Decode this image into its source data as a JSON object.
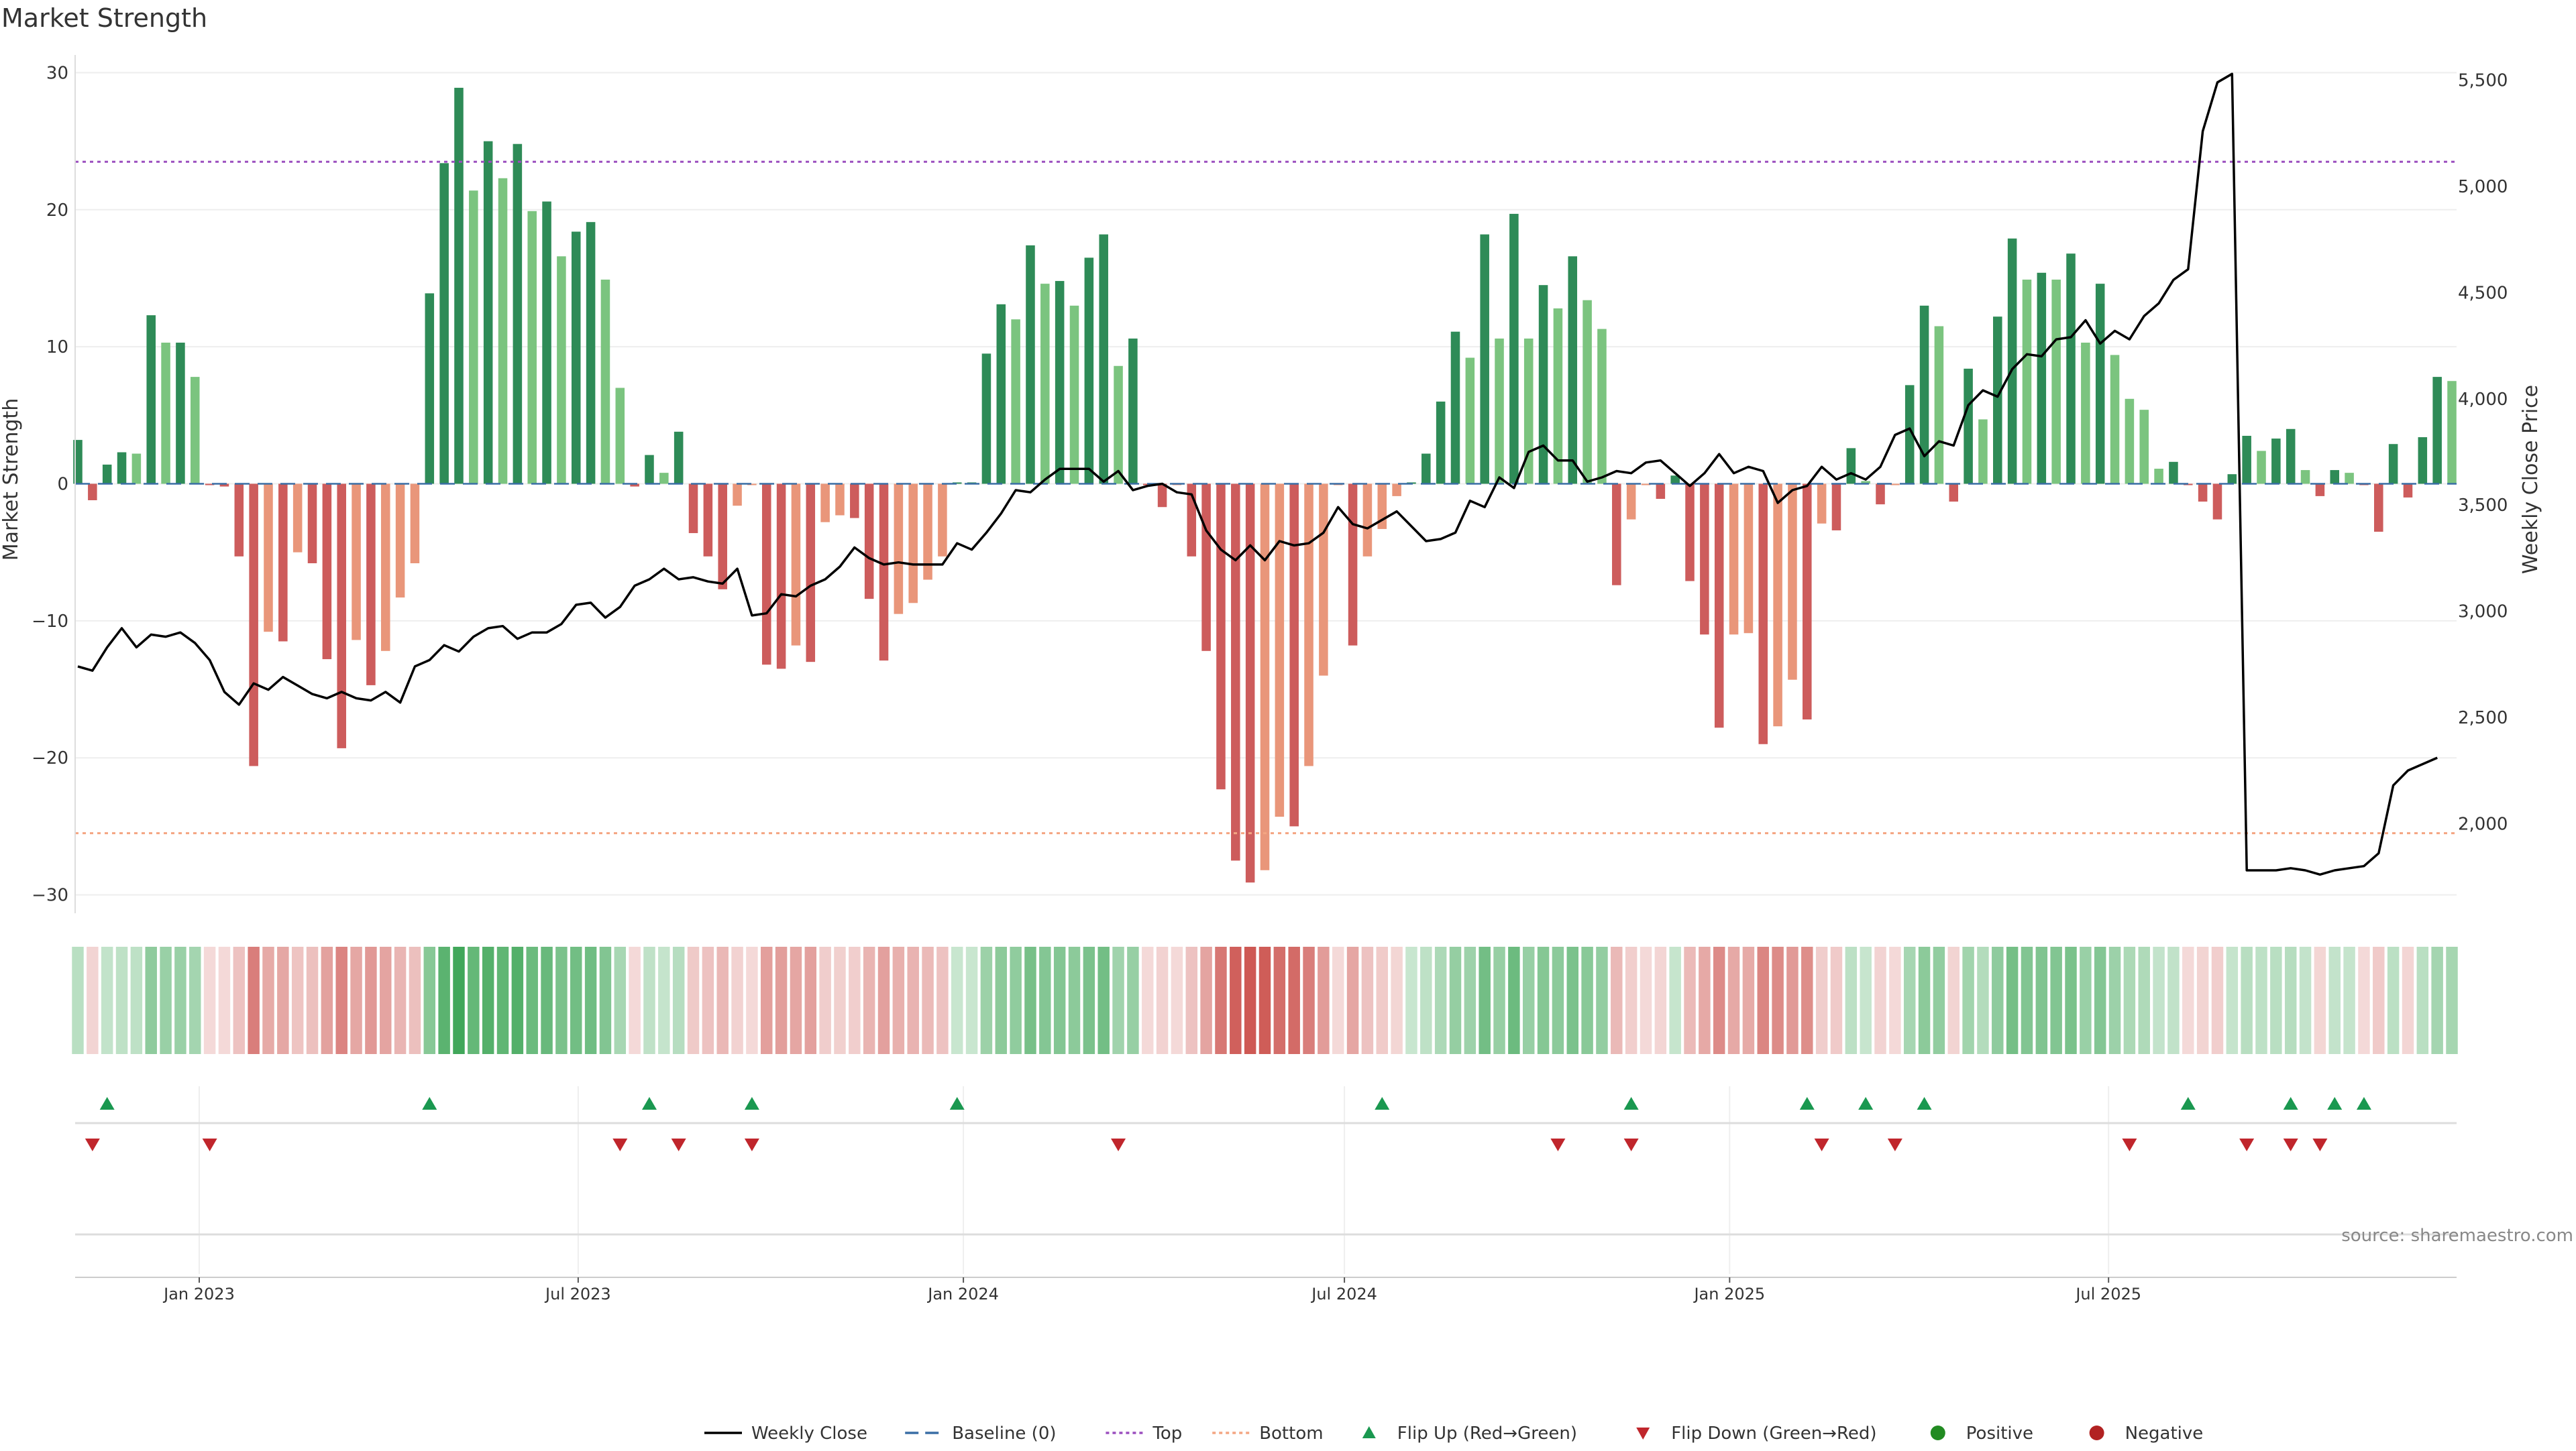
{
  "chart_data": {
    "type": "bar",
    "title": "Market Strength",
    "ylabel": "Market Strength",
    "y2label": "Weekly Close Price",
    "source": "source: sharemaestro.com",
    "ylim": [
      -31,
      31
    ],
    "y2lim": [
      1600,
      5600
    ],
    "yticks": [
      30,
      20,
      10,
      0,
      -10,
      -20,
      -30
    ],
    "y2ticks": [
      2000,
      2500,
      3000,
      3500,
      4000,
      4500,
      5000,
      5500
    ],
    "y2ticklabels": [
      "2,000",
      "2,500",
      "3,000",
      "3,500",
      "4,000",
      "4,500",
      "5,000",
      "5,500"
    ],
    "x_start": "2022-11-04",
    "x_step_days": 7,
    "xticks": [
      {
        "date": "2023-01-01",
        "label": "Jan 2023"
      },
      {
        "date": "2023-07-01",
        "label": "Jul 2023"
      },
      {
        "date": "2024-01-01",
        "label": "Jan 2024"
      },
      {
        "date": "2024-07-01",
        "label": "Jul 2024"
      },
      {
        "date": "2025-01-01",
        "label": "Jan 2025"
      },
      {
        "date": "2025-07-01",
        "label": "Jul 2025"
      }
    ],
    "threshold_top": 23.5,
    "threshold_bottom": -25.5,
    "strength": [
      3.2,
      -1.2,
      1.4,
      2.3,
      2.2,
      12.3,
      10.3,
      10.3,
      7.8,
      -0.1,
      -0.2,
      -5.3,
      -20.6,
      -10.8,
      -11.5,
      -5.0,
      -5.8,
      -12.8,
      -19.3,
      -11.4,
      -14.7,
      -12.2,
      -8.3,
      -5.8,
      13.9,
      23.4,
      28.9,
      21.4,
      25.0,
      22.3,
      24.8,
      19.9,
      20.6,
      16.6,
      18.4,
      19.1,
      14.9,
      7.0,
      -0.2,
      2.1,
      0.8,
      3.8,
      -3.6,
      -5.3,
      -7.7,
      -1.6,
      -0.1,
      -13.2,
      -13.5,
      -11.8,
      -13.0,
      -2.8,
      -2.3,
      -2.5,
      -8.4,
      -12.9,
      -9.5,
      -8.7,
      -7.0,
      -5.3,
      0.1,
      0.1,
      9.5,
      13.1,
      12.0,
      17.4,
      14.6,
      14.8,
      13.0,
      16.5,
      18.2,
      8.6,
      10.6,
      -0.1,
      -1.7,
      -0.1,
      -5.3,
      -12.2,
      -22.3,
      -27.5,
      -29.1,
      -28.2,
      -24.3,
      -25.0,
      -20.6,
      -14.0,
      -0.1,
      -11.8,
      -5.3,
      -3.3,
      -0.9,
      0.1,
      2.2,
      6.0,
      11.1,
      9.2,
      18.2,
      10.6,
      19.7,
      10.6,
      14.5,
      12.8,
      16.6,
      13.4,
      11.3,
      -7.4,
      -2.6,
      -0.1,
      -1.1,
      0.6,
      -7.1,
      -11.0,
      -17.8,
      -11.0,
      -10.9,
      -19.0,
      -17.7,
      -14.3,
      -17.2,
      -2.9,
      -3.4,
      2.6,
      0.2,
      -1.5,
      -0.1,
      7.2,
      13.0,
      11.5,
      -1.3,
      8.4,
      4.7,
      12.2,
      17.9,
      14.9,
      15.4,
      14.9,
      16.8,
      10.3,
      14.6,
      9.4,
      6.2,
      5.4,
      1.1,
      1.6,
      -0.1,
      -1.3,
      -2.6,
      0.7,
      3.5,
      2.4,
      3.3,
      4.0,
      1.0,
      -0.9,
      1.0,
      0.8,
      -0.1,
      -3.5,
      2.9,
      -1.0,
      3.4,
      7.8,
      7.5
    ],
    "close": [
      2740,
      2720,
      2830,
      2920,
      2830,
      2890,
      2880,
      2900,
      2850,
      2770,
      2620,
      2560,
      2660,
      2630,
      2690,
      2650,
      2610,
      2590,
      2620,
      2590,
      2580,
      2620,
      2570,
      2740,
      2770,
      2840,
      2810,
      2880,
      2920,
      2930,
      2870,
      2900,
      2900,
      2940,
      3030,
      3040,
      2970,
      3020,
      3120,
      3150,
      3200,
      3150,
      3160,
      3140,
      3130,
      3200,
      2980,
      2990,
      3080,
      3070,
      3120,
      3150,
      3210,
      3300,
      3250,
      3220,
      3230,
      3220,
      3220,
      3220,
      3320,
      3290,
      3370,
      3460,
      3570,
      3560,
      3620,
      3670,
      3670,
      3670,
      3610,
      3660,
      3570,
      3590,
      3600,
      3560,
      3550,
      3380,
      3290,
      3240,
      3310,
      3240,
      3330,
      3310,
      3320,
      3370,
      3490,
      3410,
      3390,
      3430,
      3470,
      3400,
      3330,
      3340,
      3370,
      3520,
      3490,
      3630,
      3580,
      3750,
      3780,
      3710,
      3710,
      3610,
      3630,
      3660,
      3650,
      3700,
      3710,
      3650,
      3590,
      3650,
      3740,
      3650,
      3680,
      3660,
      3510,
      3570,
      3590,
      3680,
      3620,
      3650,
      3620,
      3680,
      3830,
      3860,
      3730,
      3800,
      3780,
      3970,
      4040,
      4010,
      4140,
      4210,
      4200,
      4280,
      4290,
      4370,
      4260,
      4320,
      4280,
      4390,
      4450,
      4560,
      4610,
      5260,
      5490,
      5530,
      1780,
      1780,
      1780,
      1790,
      1780,
      1760,
      1780,
      1790,
      1800,
      1860,
      2180,
      2250,
      2280,
      2310
    ],
    "flip_up": [
      2,
      24,
      39,
      46,
      60,
      89,
      106,
      118,
      122,
      126,
      144,
      151,
      154,
      156
    ],
    "flip_down": [
      1,
      9,
      37,
      41,
      46,
      71,
      101,
      106,
      119,
      124,
      140,
      148,
      151,
      153
    ],
    "series": [
      {
        "name": "Weekly Close"
      },
      {
        "name": "Baseline (0)"
      },
      {
        "name": "Top"
      },
      {
        "name": "Bottom"
      },
      {
        "name": "Flip Up (Red→Green)"
      },
      {
        "name": "Flip Down (Green→Red)"
      },
      {
        "name": "Positive"
      },
      {
        "name": "Negative"
      }
    ],
    "legend_position": "bottom-center"
  },
  "colors": {
    "positive_strong": "#2e8b57",
    "positive_weak": "#7bc47f",
    "negative_strong": "#cd5c5c",
    "negative_weak": "#e9967a",
    "close_line": "#000000",
    "baseline": "#3a6ea5",
    "top_line": "#9b4fbf",
    "bottom_line": "#f4a582",
    "flip_up": "#1a9850",
    "flip_down": "#c0262c",
    "legend_positive": "#228b22",
    "legend_negative": "#b22222",
    "grid": "#eeeeee"
  }
}
